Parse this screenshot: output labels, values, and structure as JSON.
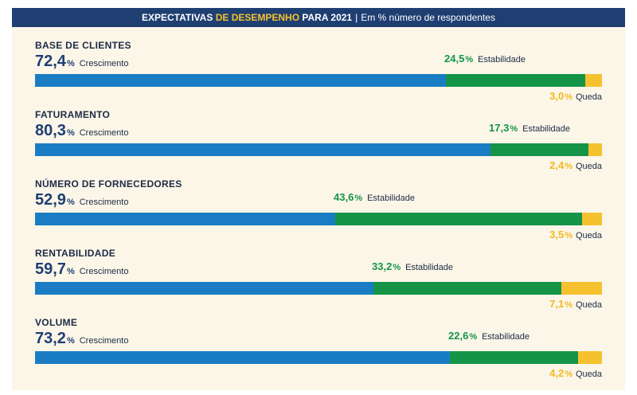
{
  "header": {
    "part1": "EXPECTATIVAS",
    "part2": "DE DESEMPENHO",
    "part3": "PARA 2021",
    "separator": "|",
    "part4": "Em % número de respondentes"
  },
  "colors": {
    "crescimento": "#1a7dc4",
    "estabilidade": "#159447",
    "queda": "#f6c12e",
    "header_bg": "#1f3f73",
    "panel_bg": "#fbf6e8"
  },
  "chart_data": {
    "type": "bar",
    "stacked": true,
    "orientation": "horizontal",
    "unit": "%",
    "categories": [
      "BASE DE CLIENTES",
      "FATURAMENTO",
      "NÚMERO DE FORNECEDORES",
      "RENTABILIDADE",
      "VOLUME"
    ],
    "series": [
      {
        "name": "Crescimento",
        "values": [
          72.4,
          80.3,
          52.9,
          59.7,
          73.2
        ]
      },
      {
        "name": "Estabilidade",
        "values": [
          24.5,
          17.3,
          43.6,
          33.2,
          22.6
        ]
      },
      {
        "name": "Queda",
        "values": [
          3.0,
          2.4,
          3.5,
          7.1,
          4.2
        ]
      }
    ]
  },
  "rows": [
    {
      "title": "BASE DE CLIENTES",
      "crescimento": "72,4",
      "estabilidade": "24,5",
      "queda": "3,0"
    },
    {
      "title": "FATURAMENTO",
      "crescimento": "80,3",
      "estabilidade": "17,3",
      "queda": "2,4"
    },
    {
      "title": "NÚMERO DE FORNECEDORES",
      "crescimento": "52,9",
      "estabilidade": "43,6",
      "queda": "3,5"
    },
    {
      "title": "RENTABILIDADE",
      "crescimento": "59,7",
      "estabilidade": "33,2",
      "queda": "7,1"
    },
    {
      "title": "VOLUME",
      "crescimento": "73,2",
      "estabilidade": "22,6",
      "queda": "4,2"
    }
  ],
  "labels": {
    "pct": "%",
    "crescimento": "Crescimento",
    "estabilidade": "Estabilidade",
    "queda": "Queda"
  }
}
